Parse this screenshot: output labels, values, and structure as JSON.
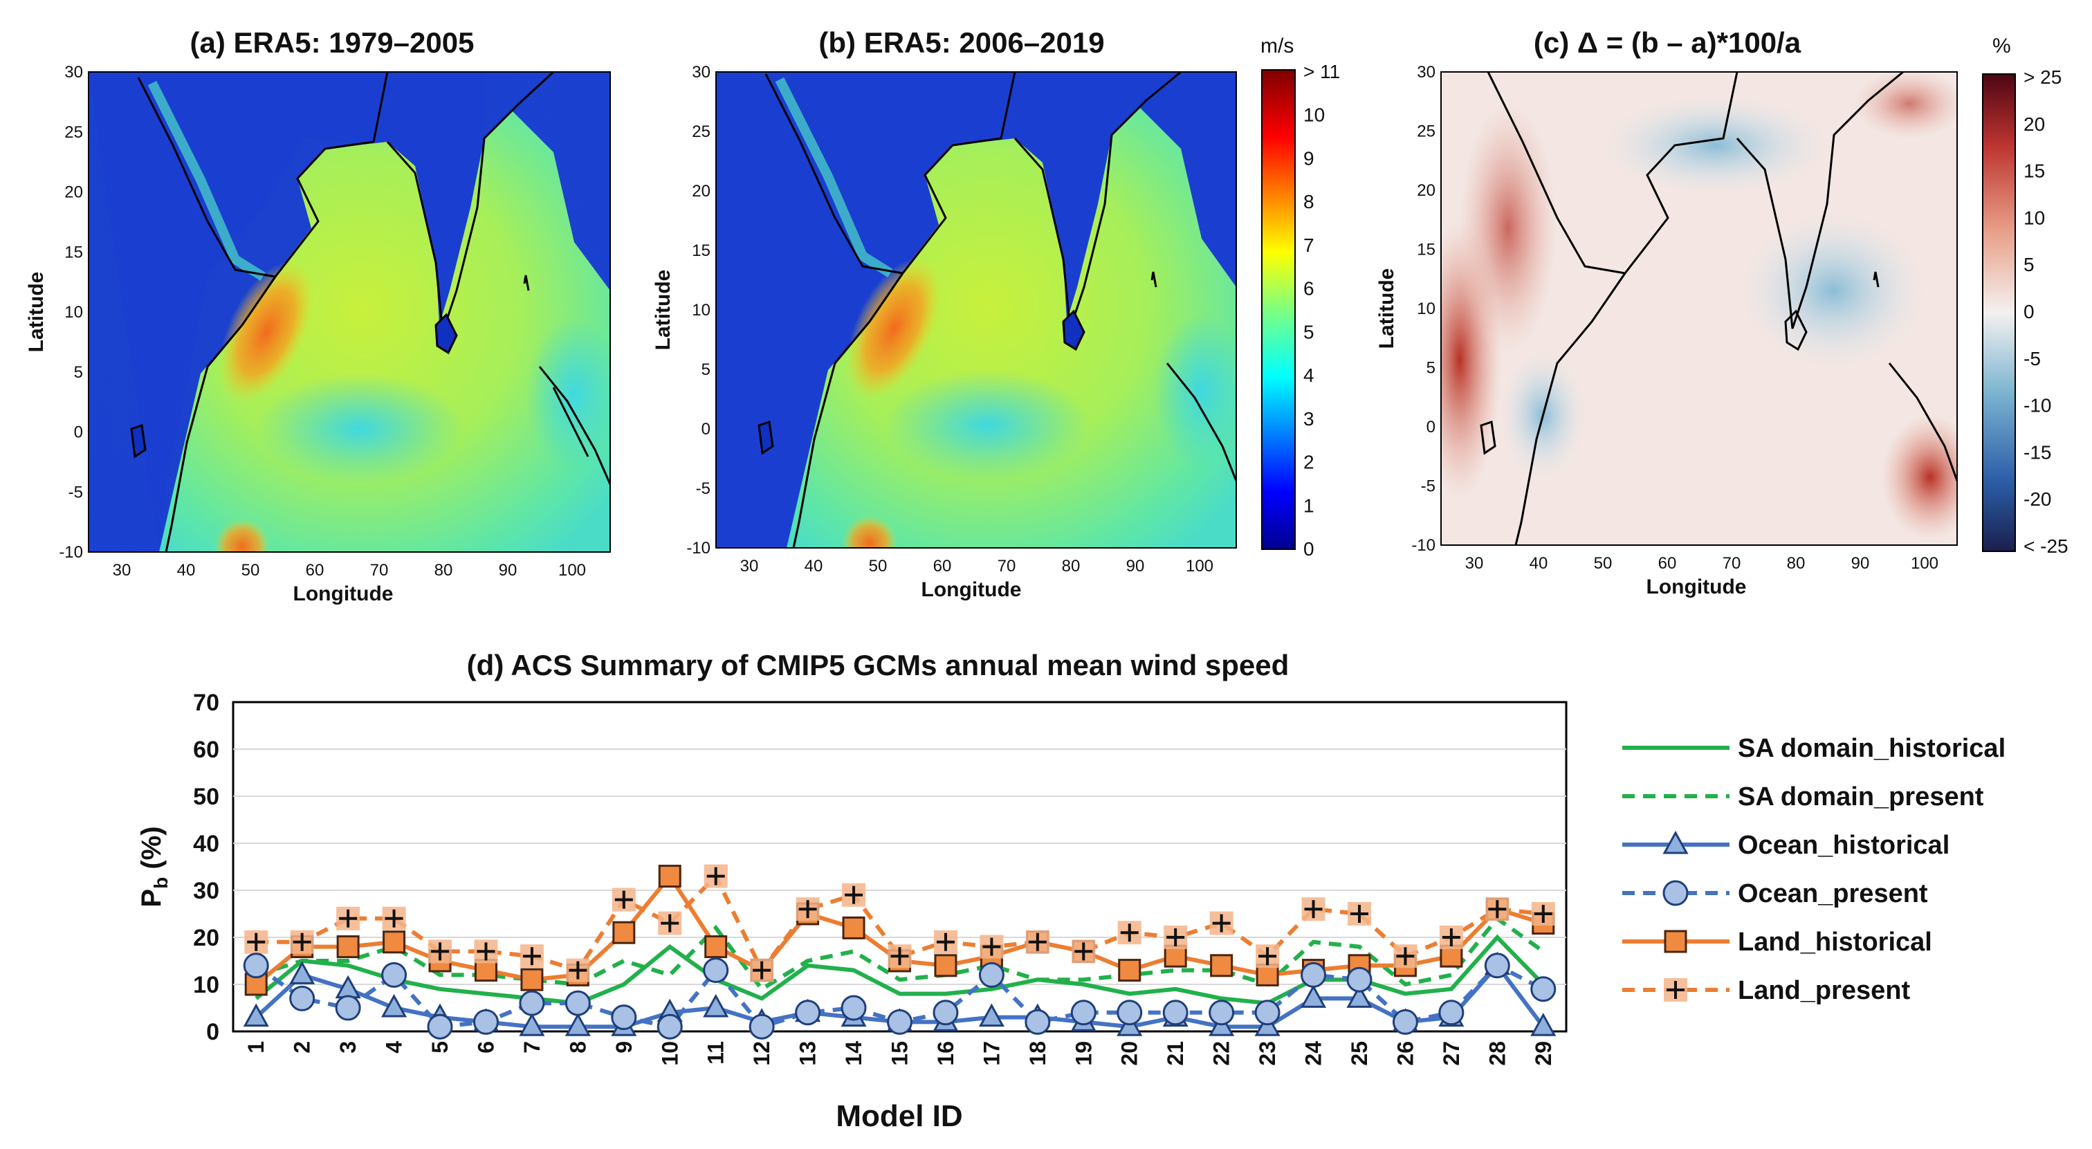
{
  "panels": {
    "a": {
      "title": "(a) ERA5: 1979–2005"
    },
    "b": {
      "title": "(b) ERA5: 2006–2019"
    },
    "c": {
      "title": "(c) Δ = (b – a)*100/a"
    },
    "xlabel": "Longitude",
    "ylabel": "Latitude",
    "lat_ticks": [
      "30",
      "25",
      "20",
      "15",
      "10",
      "5",
      "0",
      "-5",
      "-10"
    ],
    "lon_ticks": [
      "30",
      "40",
      "50",
      "60",
      "70",
      "80",
      "90",
      "100"
    ]
  },
  "colorbar_speed": {
    "unit": "m/s",
    "ticks": [
      "> 11",
      "10",
      "9",
      "8",
      "7",
      "6",
      "5",
      "4",
      "3",
      "2",
      "1",
      "0"
    ]
  },
  "colorbar_delta": {
    "unit": "%",
    "ticks": [
      "> 25",
      "20",
      "15",
      "10",
      "5",
      "0",
      "-5",
      "-10",
      "-15",
      "-20",
      "< -25"
    ]
  },
  "chart_data": {
    "type": "line",
    "title": "(d) ACS Summary of CMIP5 GCMs annual mean wind speed",
    "xlabel": "Model ID",
    "ylabel": "P",
    "ylabel_sub": "b",
    "ylabel_unit": " (%)",
    "ylim": [
      0,
      70
    ],
    "yticks": [
      "0",
      "10",
      "20",
      "30",
      "40",
      "50",
      "60",
      "70"
    ],
    "x": [
      "1",
      "2",
      "3",
      "4",
      "5",
      "6",
      "7",
      "8",
      "9",
      "10",
      "11",
      "12",
      "13",
      "14",
      "15",
      "16",
      "17",
      "18",
      "19",
      "20",
      "21",
      "22",
      "23",
      "24",
      "25",
      "26",
      "27",
      "28",
      "29"
    ],
    "series": [
      {
        "name": "SA domain_historical",
        "color": "#22b04b",
        "dash": "solid",
        "marker": "none",
        "values": [
          7,
          15,
          14,
          11,
          9,
          8,
          7,
          6,
          10,
          18,
          11,
          7,
          14,
          13,
          8,
          8,
          9,
          11,
          10,
          8,
          9,
          7,
          6,
          11,
          11,
          8,
          9,
          20,
          10
        ]
      },
      {
        "name": "SA domain_present",
        "color": "#22b04b",
        "dash": "dashed",
        "marker": "none",
        "values": [
          12,
          15,
          15,
          18,
          12,
          12,
          11,
          10,
          15,
          12,
          22,
          9,
          15,
          17,
          11,
          12,
          14,
          11,
          11,
          12,
          13,
          13,
          10,
          19,
          18,
          10,
          12,
          24,
          17
        ]
      },
      {
        "name": "Ocean_historical",
        "color": "#4472c4",
        "dash": "solid",
        "marker": "triangle",
        "values": [
          3,
          12,
          9,
          5,
          3,
          2,
          1,
          1,
          1,
          4,
          5,
          2,
          4,
          3,
          2,
          2,
          3,
          3,
          2,
          1,
          3,
          1,
          1,
          7,
          7,
          2,
          3,
          14,
          1
        ]
      },
      {
        "name": "Ocean_present",
        "color": "#4472c4",
        "dash": "dashed",
        "marker": "circle",
        "values": [
          14,
          7,
          5,
          12,
          1,
          2,
          6,
          6,
          3,
          1,
          13,
          1,
          4,
          5,
          2,
          4,
          12,
          2,
          4,
          4,
          4,
          4,
          4,
          12,
          11,
          2,
          4,
          14,
          9
        ]
      },
      {
        "name": "Land_historical",
        "color": "#ed7d31",
        "dash": "solid",
        "marker": "square",
        "values": [
          10,
          18,
          18,
          19,
          15,
          13,
          11,
          12,
          21,
          33,
          18,
          13,
          25,
          22,
          15,
          14,
          16,
          19,
          17,
          13,
          16,
          14,
          12,
          13,
          14,
          14,
          16,
          26,
          23
        ]
      },
      {
        "name": "Land_present",
        "color": "#ed7d31",
        "dash": "dashed",
        "marker": "plus",
        "values": [
          19,
          19,
          24,
          24,
          17,
          17,
          16,
          13,
          28,
          23,
          33,
          13,
          26,
          29,
          16,
          19,
          18,
          19,
          17,
          21,
          20,
          23,
          16,
          26,
          25,
          16,
          20,
          26,
          25
        ]
      }
    ]
  }
}
